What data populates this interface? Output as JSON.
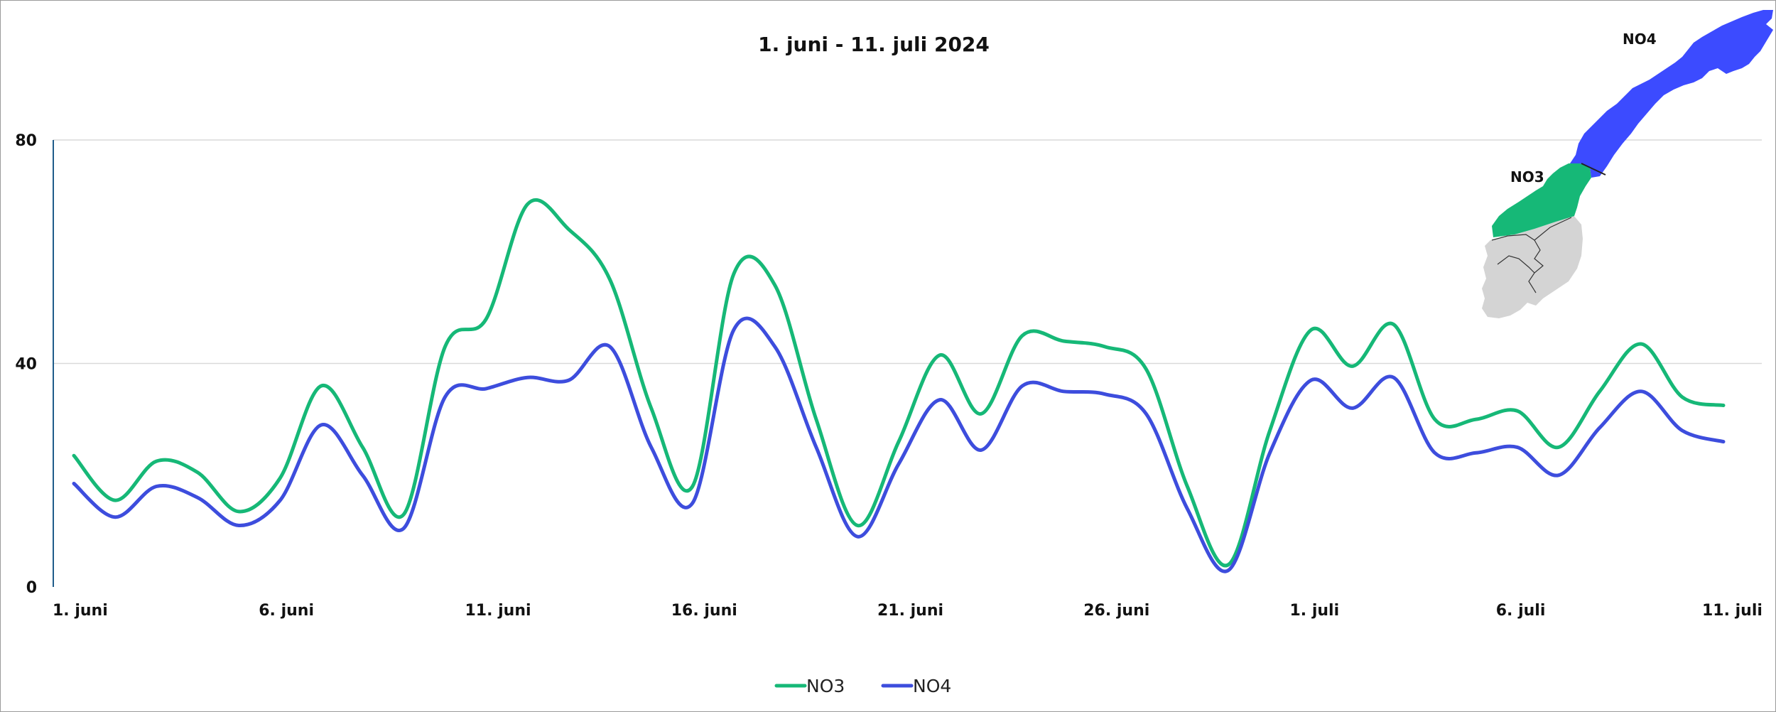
{
  "chart_data": {
    "type": "line",
    "title": "1. juni - 11. juli 2024",
    "xlabel": "",
    "ylabel": "",
    "x": [
      "2024-06-01",
      "2024-06-02",
      "2024-06-03",
      "2024-06-04",
      "2024-06-05",
      "2024-06-06",
      "2024-06-07",
      "2024-06-08",
      "2024-06-09",
      "2024-06-10",
      "2024-06-11",
      "2024-06-12",
      "2024-06-13",
      "2024-06-14",
      "2024-06-15",
      "2024-06-16",
      "2024-06-17",
      "2024-06-18",
      "2024-06-19",
      "2024-06-20",
      "2024-06-21",
      "2024-06-22",
      "2024-06-23",
      "2024-06-24",
      "2024-06-25",
      "2024-06-26",
      "2024-06-27",
      "2024-06-28",
      "2024-06-29",
      "2024-06-30",
      "2024-07-01",
      "2024-07-02",
      "2024-07-03",
      "2024-07-04",
      "2024-07-05",
      "2024-07-06",
      "2024-07-07",
      "2024-07-08",
      "2024-07-09",
      "2024-07-10",
      "2024-07-11"
    ],
    "x_tick_labels": [
      "1. juni",
      "6. juni",
      "11. juni",
      "16. juni",
      "21. juni",
      "26. juni",
      "1. juli",
      "6. juli",
      "11. juli"
    ],
    "x_tick_indices": [
      0,
      5,
      10,
      15,
      20,
      25,
      30,
      35,
      40
    ],
    "y_ticks": [
      0,
      40,
      80
    ],
    "ylim": [
      0,
      80
    ],
    "grid": true,
    "legend": "bottom-center",
    "series": [
      {
        "name": "NO3",
        "color": "#16b877",
        "values": [
          23.5,
          15.5,
          22.5,
          20.5,
          13.5,
          19.5,
          36,
          25,
          13,
          43,
          48,
          68.5,
          64,
          55,
          32,
          18,
          56,
          54,
          30,
          11,
          26,
          41.5,
          31,
          45,
          44,
          43,
          39,
          18,
          4,
          28,
          46,
          39.5,
          47,
          30,
          30,
          31.5,
          25,
          35,
          43.5,
          34,
          32.5
        ]
      },
      {
        "name": "NO4",
        "color": "#3d4ddd",
        "values": [
          18.5,
          12.5,
          18,
          16,
          11,
          15.5,
          29,
          20,
          10.5,
          34,
          35.5,
          37.5,
          37,
          43,
          25,
          15,
          46,
          43,
          25,
          9,
          22,
          33.5,
          24.5,
          36,
          35,
          34.5,
          31,
          14,
          3,
          24,
          37,
          32,
          37.5,
          24,
          24,
          25,
          20,
          28.5,
          35,
          28,
          26
        ]
      }
    ]
  },
  "map": {
    "labels": {
      "no3": "NO3",
      "no4": "NO4"
    },
    "colors": {
      "no3": "#16b877",
      "no4": "#3c4bff",
      "other": "#d4d4d4"
    }
  }
}
